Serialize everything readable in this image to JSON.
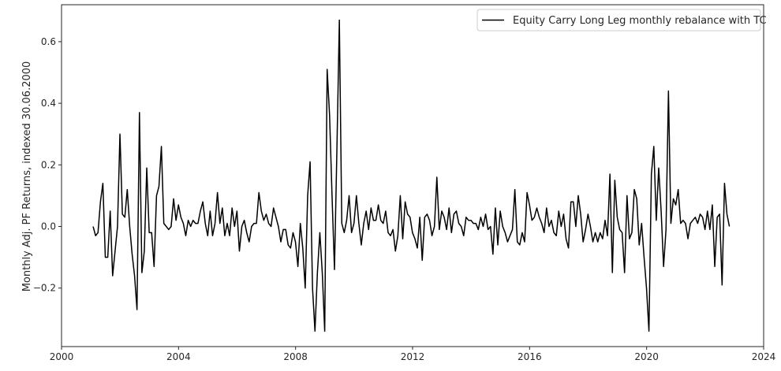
{
  "chart_data": {
    "type": "line",
    "title": "",
    "xlabel": "",
    "ylabel": "Monthly Adj. PF Returns, indexed 30.06.2000",
    "xlim": [
      2000.0,
      2024.0
    ],
    "ylim": [
      -0.39,
      0.72
    ],
    "x_ticks": [
      2000,
      2004,
      2008,
      2012,
      2016,
      2020,
      2024
    ],
    "x_tick_labels": [
      "2000",
      "2004",
      "2008",
      "2012",
      "2016",
      "2020",
      "2024"
    ],
    "y_ticks": [
      -0.2,
      0.0,
      0.2,
      0.4,
      0.6
    ],
    "y_tick_labels": [
      "−0.2",
      "0.0",
      "0.2",
      "0.4",
      "0.6"
    ],
    "grid": false,
    "legend_position": "top-right",
    "colors": {
      "line": "#000000",
      "axes": "#262626",
      "legend_border": "#cccccc"
    },
    "series": [
      {
        "name": "Equity Carry Long Leg monthly rebalance with TC",
        "x_start": 2001.08,
        "x_step": 0.08333,
        "values": [
          0.0,
          -0.03,
          -0.02,
          0.08,
          0.14,
          -0.1,
          -0.1,
          0.05,
          -0.16,
          -0.08,
          0.0,
          0.3,
          0.04,
          0.03,
          0.12,
          0.0,
          -0.09,
          -0.16,
          -0.27,
          0.37,
          -0.15,
          -0.08,
          0.19,
          -0.02,
          -0.02,
          -0.13,
          0.1,
          0.13,
          0.26,
          0.01,
          0.0,
          -0.01,
          0.0,
          0.09,
          0.02,
          0.07,
          0.03,
          0.01,
          -0.03,
          0.02,
          0.0,
          0.02,
          0.01,
          0.01,
          0.05,
          0.08,
          0.01,
          -0.03,
          0.05,
          -0.03,
          0.01,
          0.11,
          0.01,
          0.06,
          -0.03,
          0.01,
          -0.03,
          0.06,
          0.0,
          0.05,
          -0.08,
          0.0,
          0.02,
          -0.02,
          -0.05,
          0.0,
          0.01,
          0.01,
          0.11,
          0.05,
          0.02,
          0.04,
          0.01,
          0.0,
          0.06,
          0.03,
          0.0,
          -0.05,
          -0.01,
          -0.01,
          -0.06,
          -0.07,
          -0.02,
          -0.05,
          -0.13,
          0.01,
          -0.07,
          -0.2,
          0.1,
          0.21,
          -0.2,
          -0.34,
          -0.15,
          -0.02,
          -0.15,
          -0.34,
          0.51,
          0.36,
          0.1,
          -0.14,
          0.25,
          0.67,
          0.01,
          -0.02,
          0.02,
          0.1,
          -0.02,
          0.01,
          0.1,
          0.01,
          -0.06,
          0.01,
          0.05,
          -0.01,
          0.06,
          0.02,
          0.02,
          0.07,
          0.02,
          0.01,
          0.05,
          -0.02,
          -0.03,
          -0.01,
          -0.08,
          -0.03,
          0.1,
          -0.04,
          0.08,
          0.04,
          0.03,
          -0.02,
          -0.04,
          -0.07,
          0.03,
          -0.11,
          0.03,
          0.04,
          0.02,
          -0.03,
          0.0,
          0.16,
          -0.01,
          0.05,
          0.03,
          -0.01,
          0.06,
          -0.02,
          0.04,
          0.05,
          0.01,
          0.0,
          -0.03,
          0.03,
          0.02,
          0.02,
          0.01,
          0.01,
          -0.01,
          0.03,
          0.0,
          0.04,
          -0.01,
          0.0,
          -0.09,
          0.06,
          -0.06,
          0.05,
          0.0,
          -0.02,
          -0.05,
          -0.03,
          -0.01,
          0.12,
          -0.05,
          -0.06,
          -0.02,
          -0.05,
          0.11,
          0.07,
          0.02,
          0.03,
          0.06,
          0.03,
          0.01,
          -0.02,
          0.06,
          0.0,
          0.02,
          -0.02,
          -0.03,
          0.05,
          0.0,
          0.04,
          -0.04,
          -0.07,
          0.08,
          0.08,
          0.0,
          0.1,
          0.04,
          -0.05,
          -0.01,
          0.04,
          0.0,
          -0.05,
          -0.02,
          -0.05,
          -0.02,
          -0.04,
          0.02,
          -0.03,
          0.17,
          -0.15,
          0.15,
          0.03,
          -0.01,
          -0.02,
          -0.15,
          0.1,
          -0.04,
          -0.02,
          0.12,
          0.09,
          -0.06,
          0.01,
          -0.1,
          -0.2,
          -0.34,
          0.17,
          0.26,
          0.02,
          0.19,
          0.05,
          -0.13,
          -0.01,
          0.44,
          0.01,
          0.09,
          0.07,
          0.12,
          0.01,
          0.02,
          0.01,
          -0.04,
          0.01,
          0.02,
          0.03,
          0.01,
          0.04,
          0.03,
          -0.01,
          0.05,
          -0.01,
          0.07,
          -0.13,
          0.03,
          0.04,
          -0.19,
          0.14,
          0.04,
          0.0
        ]
      }
    ]
  }
}
